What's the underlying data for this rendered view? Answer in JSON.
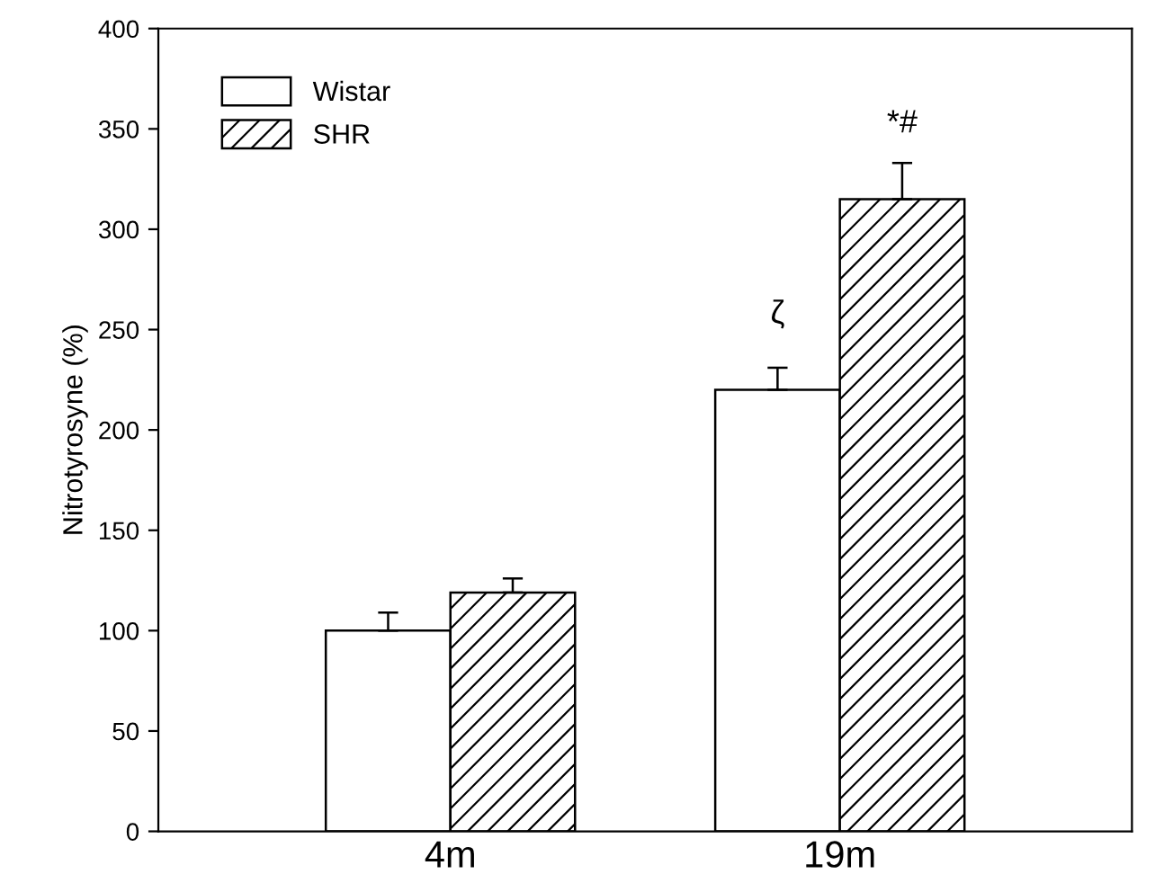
{
  "chart_data": {
    "type": "bar",
    "ylabel": "Nitrotyrosyne (%)",
    "categories": [
      "4m",
      "19m"
    ],
    "series": [
      {
        "name": "Wistar",
        "color": "#ffffff",
        "values": [
          100,
          220
        ],
        "errors": [
          [
            100,
            109
          ],
          [
            220,
            231
          ]
        ]
      },
      {
        "name": "SHR",
        "color": "#000000",
        "values": [
          119,
          315
        ],
        "errors": [
          [
            119,
            126
          ],
          [
            315,
            333
          ]
        ]
      }
    ],
    "ylim": [
      0,
      400
    ],
    "yticks": [
      0,
      50,
      100,
      150,
      200,
      250,
      300,
      350,
      400
    ],
    "grid": false,
    "legend": "top left",
    "annotations": [
      {
        "text": "ζ",
        "x": "19m",
        "y": 220
      },
      {
        "text": "*#",
        "x": "19m",
        "y": 315
      }
    ]
  }
}
